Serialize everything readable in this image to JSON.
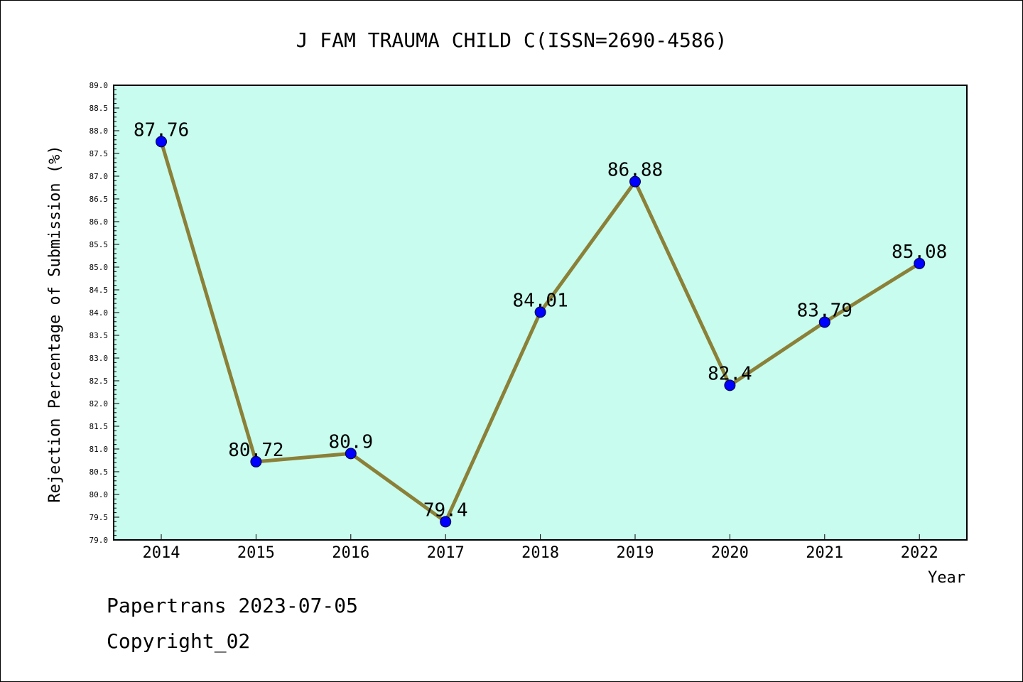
{
  "footer": {
    "line1": "Papertrans 2023-07-05",
    "line2": "Copyright_02"
  },
  "colors": {
    "plot_background": "#c8fcee",
    "line": "#8b8038",
    "marker": "#0000ff",
    "border": "#000000"
  },
  "chart_data": {
    "type": "line",
    "title": "J FAM TRAUMA CHILD C(ISSN=2690-4586)",
    "xlabel": "Year",
    "ylabel": "Rejection Percentage of Submission (%)",
    "ylim": [
      79.0,
      89.0
    ],
    "y_tick_step": 0.5,
    "y_minor_step": 0.1,
    "x": [
      "2014",
      "2015",
      "2016",
      "2017",
      "2018",
      "2019",
      "2020",
      "2021",
      "2022"
    ],
    "series": [
      {
        "values": [
          87.76,
          80.72,
          80.9,
          79.4,
          84.01,
          86.88,
          82.4,
          83.79,
          85.08
        ],
        "labels": [
          "87.76",
          "80.72",
          "80.9",
          "79.4",
          "84.01",
          "86.88",
          "82.4",
          "83.79",
          "85.08"
        ]
      }
    ],
    "grid": false,
    "legend": "none"
  }
}
